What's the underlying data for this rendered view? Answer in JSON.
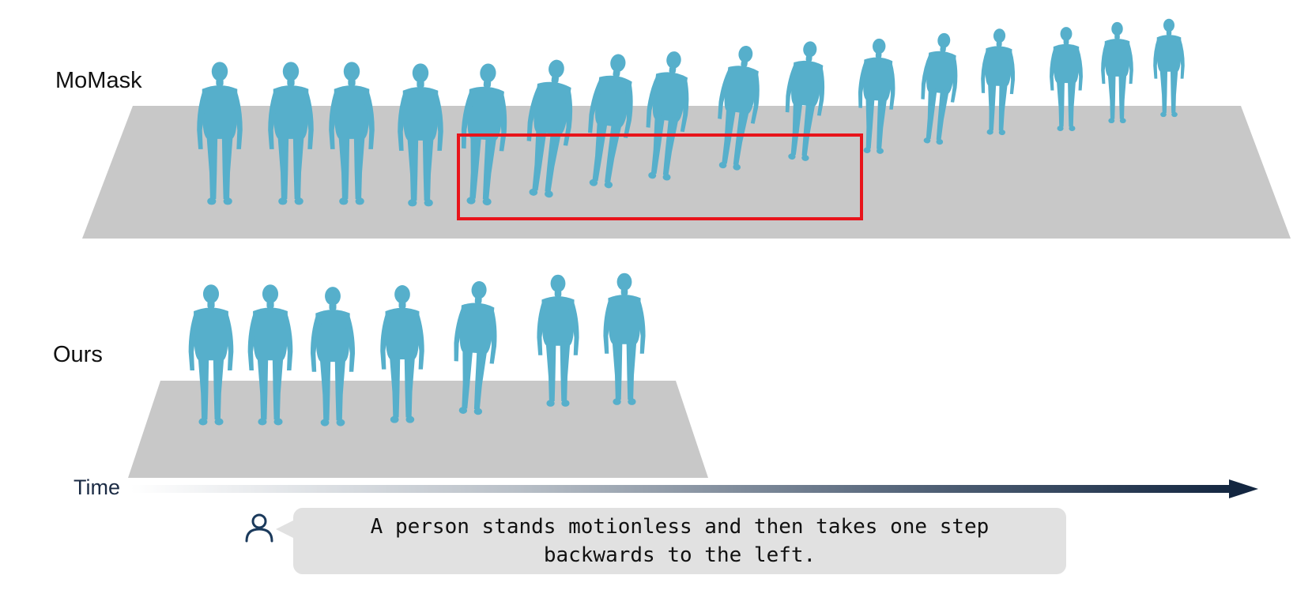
{
  "labels": {
    "top_method": "MoMask",
    "bottom_method": "Ours",
    "time": "Time"
  },
  "prompt": {
    "text": "A person stands motionless and then takes one step backwards to the left."
  },
  "icons": {
    "user": "user-icon",
    "arrow": "time-arrow-icon"
  },
  "colors": {
    "figure": "#56afcb",
    "figure_dark": "#3f97b5",
    "floor": "#c8c8c8",
    "highlight": "#e8141b",
    "arrow_dark": "#132640",
    "bubble": "#e1e1e1"
  },
  "sequences": {
    "momask_frames": 16,
    "ours_frames": 7
  }
}
